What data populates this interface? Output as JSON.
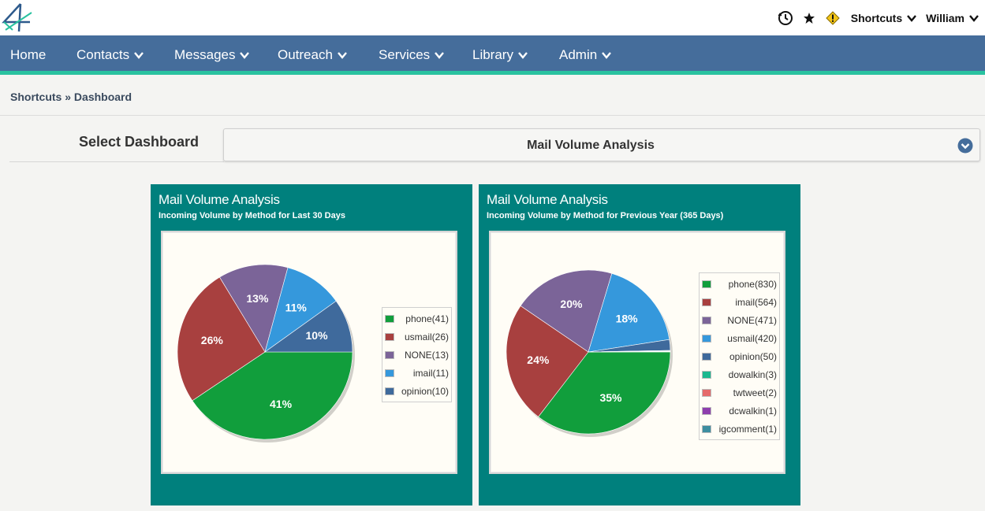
{
  "header": {
    "logo_icon": "stylized-4-logo",
    "history_icon": "history-clock-icon",
    "favorite_icon": "star-icon",
    "alert_icon": "warning-diamond-icon",
    "shortcuts_label": "Shortcuts",
    "user_label": "William"
  },
  "nav": {
    "items": [
      {
        "label": "Home",
        "dropdown": false
      },
      {
        "label": "Contacts",
        "dropdown": true
      },
      {
        "label": "Messages",
        "dropdown": true
      },
      {
        "label": "Outreach",
        "dropdown": true
      },
      {
        "label": "Services",
        "dropdown": true
      },
      {
        "label": "Library",
        "dropdown": true
      },
      {
        "label": "Admin",
        "dropdown": true
      }
    ]
  },
  "breadcrumb": {
    "root": "Shortcuts",
    "separator": "»",
    "current": "Dashboard"
  },
  "dashboard_select": {
    "label": "Select Dashboard",
    "value": "Mail Volume Analysis"
  },
  "colors": {
    "nav_bg": "#456d9b",
    "nav_accent": "#29c2a0",
    "panel_bg": "#00807d"
  },
  "chart_data": [
    {
      "type": "pie",
      "title": "Mail Volume Analysis",
      "subtitle": "Incoming Volume by Method for Last 30 Days",
      "legend_position": "right",
      "slices": [
        {
          "name": "phone",
          "value": 41,
          "label": "phone(41)",
          "pct_label": "41%",
          "color": "#119e3c"
        },
        {
          "name": "usmail",
          "value": 26,
          "label": "usmail(26)",
          "pct_label": "26%",
          "color": "#a8403f"
        },
        {
          "name": "NONE",
          "value": 13,
          "label": "NONE(13)",
          "pct_label": "13%",
          "color": "#7b6498"
        },
        {
          "name": "imail",
          "value": 11,
          "label": "imail(11)",
          "pct_label": "11%",
          "color": "#3598dc"
        },
        {
          "name": "opinion",
          "value": 10,
          "label": "opinion(10)",
          "pct_label": "10%",
          "color": "#3f6a9c"
        }
      ]
    },
    {
      "type": "pie",
      "title": "Mail Volume Analysis",
      "subtitle": "Incoming Volume by Method for Previous Year (365 Days)",
      "legend_position": "right",
      "slices": [
        {
          "name": "phone",
          "value": 830,
          "label": "phone(830)",
          "pct_label": "35%",
          "color": "#119e3c"
        },
        {
          "name": "imail",
          "value": 564,
          "label": "imail(564)",
          "pct_label": "24%",
          "color": "#a8403f"
        },
        {
          "name": "NONE",
          "value": 471,
          "label": "NONE(471)",
          "pct_label": "20%",
          "color": "#7b6498"
        },
        {
          "name": "usmail",
          "value": 420,
          "label": "usmail(420)",
          "pct_label": "18%",
          "color": "#3598dc"
        },
        {
          "name": "opinion",
          "value": 50,
          "label": "opinion(50)",
          "pct_label": "",
          "color": "#3f6a9c"
        },
        {
          "name": "dowalkin",
          "value": 3,
          "label": "dowalkin(3)",
          "pct_label": "",
          "color": "#1bb88f"
        },
        {
          "name": "twtweet",
          "value": 2,
          "label": "twtweet(2)",
          "pct_label": "",
          "color": "#e56a6a"
        },
        {
          "name": "dcwalkin",
          "value": 1,
          "label": "dcwalkin(1)",
          "pct_label": "",
          "color": "#8e3fae"
        },
        {
          "name": "igcomment",
          "value": 1,
          "label": "igcomment(1)",
          "pct_label": "",
          "color": "#3d8ea0"
        }
      ]
    }
  ]
}
